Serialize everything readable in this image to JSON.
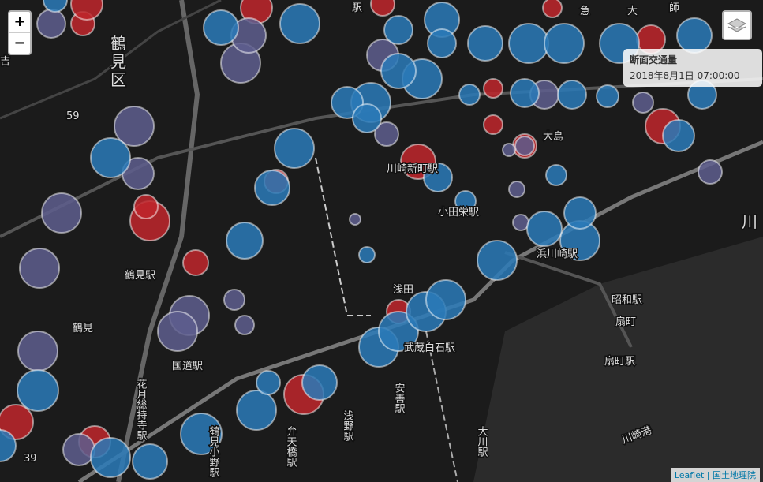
{
  "controls": {
    "zoom_in": "+",
    "zoom_out": "−"
  },
  "info": {
    "title": "断面交通量",
    "datetime": "2018年8月1日 07:00:00"
  },
  "attribution": {
    "library": "Leaflet",
    "source": "国土地理院"
  },
  "map": {
    "labels": [
      "鶴",
      "見",
      "区",
      "鶴見駅",
      "鶴見",
      "浅田",
      "大島",
      "小田栄駅",
      "浜川崎駅",
      "昭和駅",
      "扇町",
      "扇町駅",
      "川崎港",
      "国道駅",
      "武蔵白石駅",
      "川崎新町駅",
      "59",
      "39",
      "吉",
      "川",
      "急",
      "大",
      "師",
      "駅",
      "弁天橋駅",
      "浅野駅",
      "安善駅",
      "大川駅",
      "花月総持寺駅",
      "鶴見小野駅"
    ]
  }
}
